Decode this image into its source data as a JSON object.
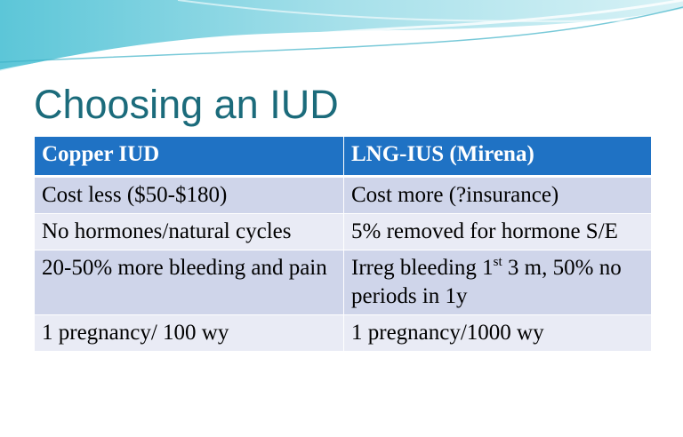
{
  "title": "Choosing an IUD",
  "table": {
    "header": [
      "Copper IUD",
      "LNG-IUS (Mirena)"
    ],
    "rows": [
      [
        {
          "text": "Cost less ($50-$180)"
        },
        {
          "text": "Cost more (?insurance)"
        }
      ],
      [
        {
          "text": "No hormones/natural cycles"
        },
        {
          "text": "5% removed for hormone S/E"
        }
      ],
      [
        {
          "text": "20-50% more bleeding and pain"
        },
        {
          "text": "Irreg bleeding 1",
          "sup": "st",
          "rest": " 3 m, 50% no periods in 1y"
        }
      ],
      [
        {
          "text": "1 pregnancy/ 100 wy"
        },
        {
          "text": "1 pregnancy/1000 wy"
        }
      ]
    ]
  }
}
